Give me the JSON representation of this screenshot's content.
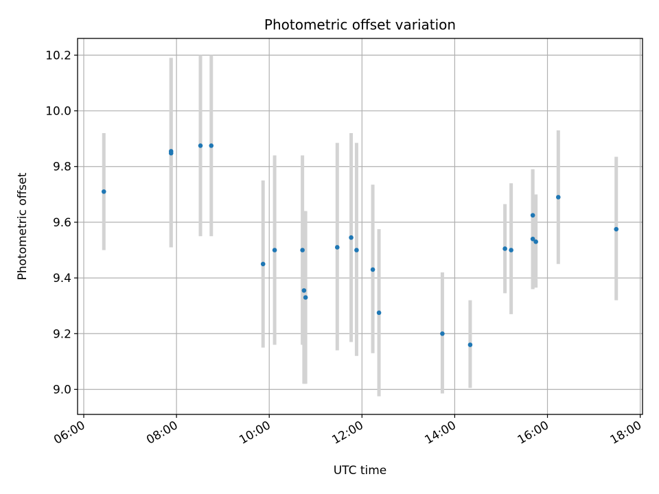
{
  "chart_data": {
    "type": "scatter",
    "title": "Photometric offset variation",
    "xlabel": "UTC time",
    "ylabel": "Photometric offset",
    "xlim": [
      "05:52",
      "18:03"
    ],
    "ylim": [
      8.91,
      10.26
    ],
    "x_ticks": [
      "06:00",
      "08:00",
      "10:00",
      "12:00",
      "14:00",
      "16:00",
      "18:00"
    ],
    "y_ticks": [
      9.0,
      9.2,
      9.4,
      9.6,
      9.8,
      10.0,
      10.2
    ],
    "y_tick_labels": [
      "9.0",
      "9.2",
      "9.4",
      "9.6",
      "9.8",
      "10.0",
      "10.2"
    ],
    "grid": true,
    "marker_color": "#1f77b4",
    "errorbar_color": "#d3d3d3",
    "points": [
      {
        "x": "06:26",
        "y": 9.71,
        "ylow": 9.5,
        "yhigh": 9.92
      },
      {
        "x": "07:53",
        "y": 9.855,
        "ylow": 9.51,
        "yhigh": 10.19
      },
      {
        "x": "07:53",
        "y": 9.848,
        "ylow": 9.51,
        "yhigh": 10.19
      },
      {
        "x": "08:31",
        "y": 9.875,
        "ylow": 9.55,
        "yhigh": 10.2
      },
      {
        "x": "08:45",
        "y": 9.875,
        "ylow": 9.55,
        "yhigh": 10.2
      },
      {
        "x": "09:52",
        "y": 9.45,
        "ylow": 9.15,
        "yhigh": 9.75
      },
      {
        "x": "10:07",
        "y": 9.5,
        "ylow": 9.16,
        "yhigh": 9.84
      },
      {
        "x": "10:43",
        "y": 9.5,
        "ylow": 9.16,
        "yhigh": 9.84
      },
      {
        "x": "10:45",
        "y": 9.355,
        "ylow": 9.02,
        "yhigh": 9.64
      },
      {
        "x": "10:47",
        "y": 9.33,
        "ylow": 9.02,
        "yhigh": 9.64
      },
      {
        "x": "11:28",
        "y": 9.51,
        "ylow": 9.14,
        "yhigh": 9.885
      },
      {
        "x": "11:46",
        "y": 9.545,
        "ylow": 9.17,
        "yhigh": 9.92
      },
      {
        "x": "11:53",
        "y": 9.5,
        "ylow": 9.12,
        "yhigh": 9.885
      },
      {
        "x": "12:14",
        "y": 9.43,
        "ylow": 9.13,
        "yhigh": 9.735
      },
      {
        "x": "12:22",
        "y": 9.275,
        "ylow": 8.975,
        "yhigh": 9.575
      },
      {
        "x": "13:44",
        "y": 9.2,
        "ylow": 8.985,
        "yhigh": 9.42
      },
      {
        "x": "14:20",
        "y": 9.16,
        "ylow": 9.005,
        "yhigh": 9.32
      },
      {
        "x": "15:05",
        "y": 9.505,
        "ylow": 9.345,
        "yhigh": 9.665
      },
      {
        "x": "15:13",
        "y": 9.5,
        "ylow": 9.27,
        "yhigh": 9.74
      },
      {
        "x": "15:41",
        "y": 9.625,
        "ylow": 9.36,
        "yhigh": 9.79
      },
      {
        "x": "15:41",
        "y": 9.54,
        "ylow": 9.36,
        "yhigh": 9.79
      },
      {
        "x": "15:45",
        "y": 9.53,
        "ylow": 9.365,
        "yhigh": 9.7
      },
      {
        "x": "16:14",
        "y": 9.69,
        "ylow": 9.45,
        "yhigh": 9.93
      },
      {
        "x": "17:29",
        "y": 9.575,
        "ylow": 9.32,
        "yhigh": 9.835
      }
    ]
  }
}
